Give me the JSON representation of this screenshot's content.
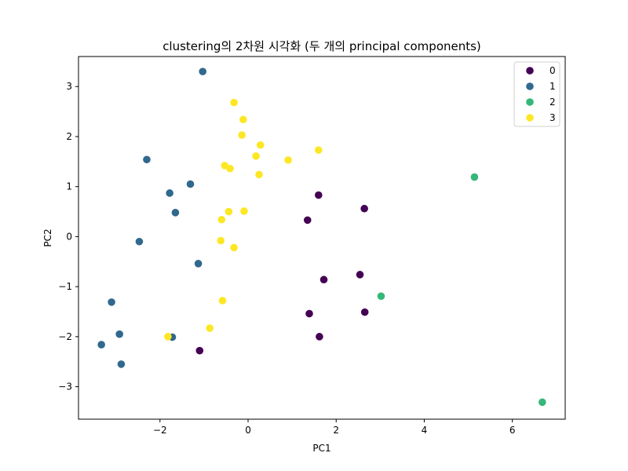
{
  "chart_data": {
    "type": "scatter",
    "title": "clustering의 2차원 시각화 (두 개의 principal components)",
    "xlabel": "PC1",
    "ylabel": "PC2",
    "xlim": [
      -3.85,
      7.2
    ],
    "ylim": [
      -3.65,
      3.6
    ],
    "xticks": [
      -2,
      0,
      2,
      4,
      6
    ],
    "xtick_labels": [
      "−2",
      "0",
      "2",
      "4",
      "6"
    ],
    "yticks": [
      -3,
      -2,
      -1,
      0,
      1,
      2,
      3
    ],
    "ytick_labels": [
      "−3",
      "−2",
      "−1",
      "0",
      "1",
      "2",
      "3"
    ],
    "grid": false,
    "legend_position": "top-right",
    "series": [
      {
        "name": "0",
        "color": "#440154",
        "points": [
          [
            1.6,
            0.83
          ],
          [
            2.64,
            0.56
          ],
          [
            1.35,
            0.33
          ],
          [
            2.54,
            -0.76
          ],
          [
            1.72,
            -0.86
          ],
          [
            1.39,
            -1.54
          ],
          [
            2.65,
            -1.51
          ],
          [
            1.62,
            -2.0
          ],
          [
            -1.1,
            -2.28
          ]
        ]
      },
      {
        "name": "1",
        "color": "#31688e",
        "points": [
          [
            -1.03,
            3.3
          ],
          [
            -2.3,
            1.54
          ],
          [
            -1.31,
            1.05
          ],
          [
            -1.78,
            0.87
          ],
          [
            -1.65,
            0.48
          ],
          [
            -2.47,
            -0.1
          ],
          [
            -1.13,
            -0.54
          ],
          [
            -3.1,
            -1.31
          ],
          [
            -2.92,
            -1.95
          ],
          [
            -1.72,
            -2.01
          ],
          [
            -3.33,
            -2.16
          ],
          [
            -2.88,
            -2.55
          ]
        ]
      },
      {
        "name": "2",
        "color": "#35b779",
        "points": [
          [
            5.14,
            1.19
          ],
          [
            3.02,
            -1.19
          ],
          [
            6.68,
            -3.31
          ]
        ]
      },
      {
        "name": "3",
        "color": "#fde725",
        "points": [
          [
            -0.32,
            2.68
          ],
          [
            -0.11,
            2.34
          ],
          [
            -0.14,
            2.03
          ],
          [
            0.28,
            1.83
          ],
          [
            0.18,
            1.61
          ],
          [
            0.91,
            1.53
          ],
          [
            1.6,
            1.73
          ],
          [
            -0.53,
            1.42
          ],
          [
            -0.41,
            1.36
          ],
          [
            0.25,
            1.24
          ],
          [
            -0.44,
            0.5
          ],
          [
            -0.09,
            0.51
          ],
          [
            -0.6,
            0.34
          ],
          [
            -0.62,
            -0.08
          ],
          [
            -0.32,
            -0.22
          ],
          [
            -0.58,
            -1.28
          ],
          [
            -0.87,
            -1.83
          ],
          [
            -1.82,
            -2.0
          ]
        ]
      }
    ]
  }
}
